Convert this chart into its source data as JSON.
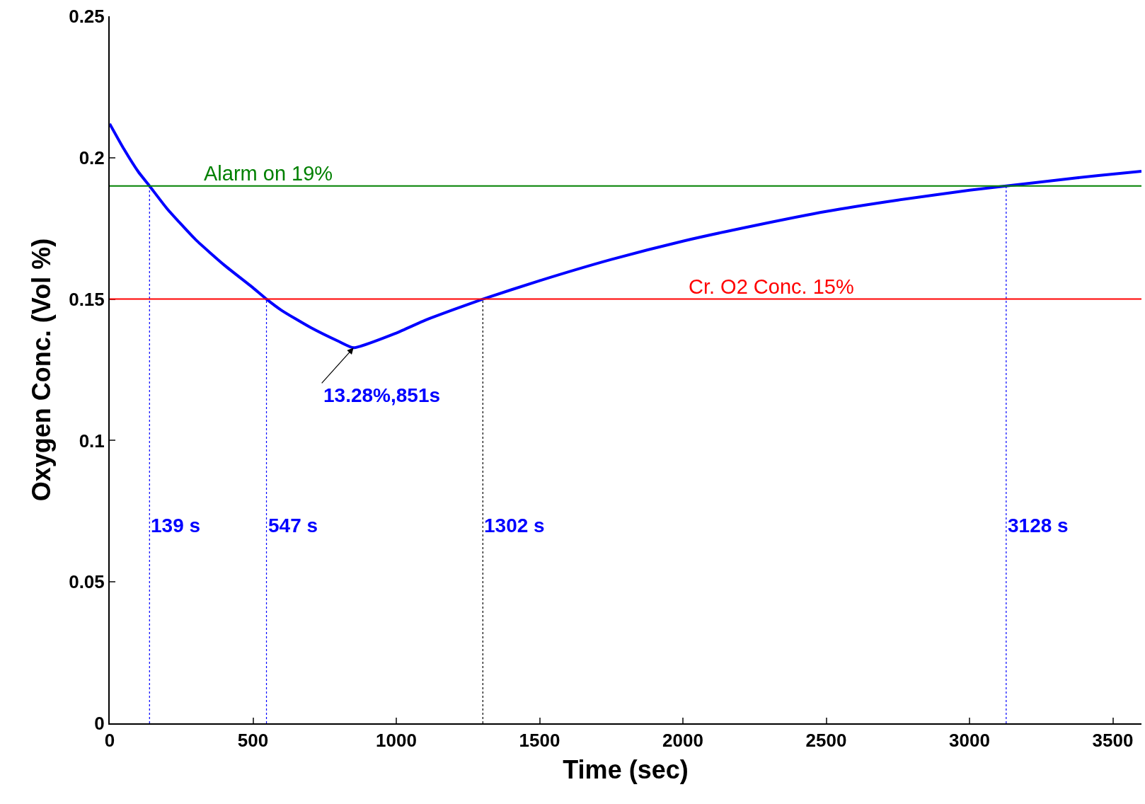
{
  "chart_data": {
    "type": "line",
    "xlabel": "Time (sec)",
    "ylabel": "Oxygen Conc. (Vol %)",
    "xlim": [
      0,
      3600
    ],
    "xticks": [
      0,
      500,
      1000,
      1500,
      2000,
      2500,
      3000,
      3500
    ],
    "ylim": [
      0,
      0.25
    ],
    "yticks": [
      0,
      0.05,
      0.1,
      0.15,
      0.2,
      0.25
    ],
    "series": [
      {
        "color": "#0000ff",
        "x": [
          0,
          50,
          100,
          139,
          200,
          300,
          400,
          500,
          547,
          600,
          700,
          800,
          851,
          1000,
          1100,
          1200,
          1302,
          1500,
          1750,
          2000,
          2250,
          2500,
          2750,
          3000,
          3128,
          3300,
          3450,
          3600
        ],
        "values": [
          0.212,
          0.203,
          0.195,
          0.19,
          0.182,
          0.171,
          0.162,
          0.154,
          0.15,
          0.146,
          0.14,
          0.135,
          0.1328,
          0.138,
          0.1425,
          0.1463,
          0.15,
          0.1565,
          0.164,
          0.1705,
          0.176,
          0.181,
          0.185,
          0.1885,
          0.19,
          0.192,
          0.1937,
          0.1952
        ]
      },
      {
        "color": "#0000ff",
        "line_style": "dotted",
        "x": [
          139,
          139
        ],
        "values": [
          0,
          0.19
        ]
      },
      {
        "color": "#0000ff",
        "line_style": "dotted",
        "x": [
          547,
          547
        ],
        "values": [
          0,
          0.15
        ]
      },
      {
        "color": "#000000",
        "line_style": "dotted",
        "x": [
          1302,
          1302
        ],
        "values": [
          0,
          0.15
        ]
      },
      {
        "color": "#0000ff",
        "line_style": "dotted",
        "x": [
          3128,
          3128
        ],
        "values": [
          0,
          0.19
        ]
      }
    ],
    "ref_lines": [
      {
        "axis": "y",
        "value": 0.19,
        "label": "Alarm on 19%",
        "color": "#008000"
      },
      {
        "axis": "y",
        "value": 0.15,
        "label": "Cr. O2 Conc. 15%",
        "color": "#ff0000"
      }
    ],
    "annotations": [
      {
        "text": "13.28%,851s",
        "x": 851,
        "y": 0.1328
      },
      {
        "text": "139 s",
        "x": 139,
        "y": 0.07
      },
      {
        "text": "547 s",
        "x": 547,
        "y": 0.07
      },
      {
        "text": "1302 s",
        "x": 1302,
        "y": 0.07
      },
      {
        "text": "3128 s",
        "x": 3128,
        "y": 0.07
      }
    ]
  }
}
